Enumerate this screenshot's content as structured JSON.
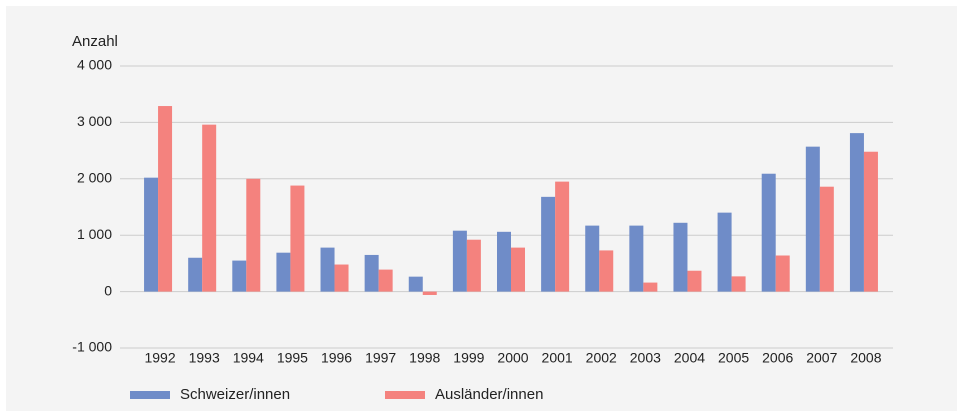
{
  "chart_data": {
    "type": "bar",
    "y_label": "Anzahl",
    "categories": [
      "1992",
      "1993",
      "1994",
      "1995",
      "1996",
      "1997",
      "1998",
      "1999",
      "2000",
      "2001",
      "2002",
      "2003",
      "2004",
      "2005",
      "2006",
      "2007",
      "2008"
    ],
    "series": [
      {
        "name": "Schweizer/innen",
        "color": "#6f8cc8",
        "values": [
          2020,
          600,
          550,
          690,
          780,
          650,
          265,
          1080,
          1060,
          1680,
          1170,
          1170,
          1220,
          1400,
          2090,
          2570,
          2810
        ]
      },
      {
        "name": "Ausländer/innen",
        "color": "#f4827e",
        "values": [
          3290,
          2960,
          2000,
          1880,
          480,
          390,
          -60,
          920,
          780,
          1950,
          730,
          160,
          370,
          270,
          640,
          1860,
          2480
        ]
      }
    ],
    "ylim": [
      -1000,
      4000
    ],
    "yticks": [
      {
        "value": -1000,
        "label": "-1 000"
      },
      0,
      {
        "value": 1000,
        "label": "1 000"
      },
      {
        "value": 2000,
        "label": "2 000"
      },
      {
        "value": 3000,
        "label": "3 000"
      },
      {
        "value": 4000,
        "label": "4 000"
      }
    ],
    "grid": true
  }
}
